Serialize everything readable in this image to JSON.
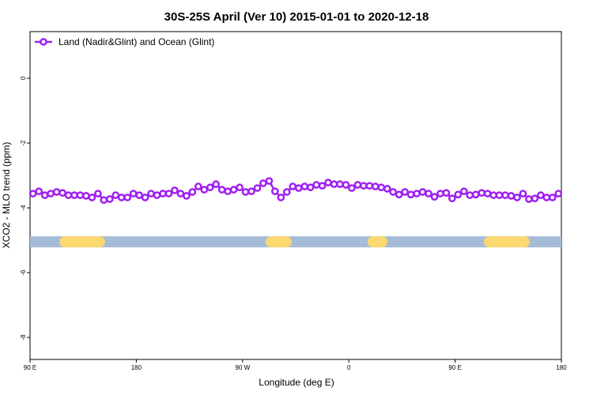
{
  "chart_data": {
    "type": "line",
    "title": "30S-25S April (Ver 10)   2015-01-01 to 2020-12-18",
    "xlabel": "Longitude (deg E)",
    "ylabel": "XCO2 - MLO trend (ppm)",
    "xlim": [
      90,
      540
    ],
    "ylim": [
      -8.68,
      1.44
    ],
    "xticks": [
      {
        "value": 90,
        "label": "90 E"
      },
      180,
      {
        "value": 270,
        "label": "90 W"
      },
      {
        "value": 360,
        "label": "0"
      },
      {
        "value": 450,
        "label": "90 E"
      },
      {
        "value": 540,
        "label": "180"
      }
    ],
    "yticks": [
      0,
      -2,
      -4,
      -6,
      -8
    ],
    "legend": "upper left",
    "x": [
      92.5,
      97.5,
      102.5,
      107.5,
      112.5,
      117.5,
      122.5,
      127.5,
      132.5,
      137.5,
      142.5,
      147.5,
      152.5,
      157.5,
      162.5,
      167.5,
      172.5,
      177.5,
      182.5,
      187.5,
      192.5,
      197.5,
      202.5,
      207.5,
      212.5,
      217.5,
      222.5,
      227.5,
      232.5,
      237.5,
      242.5,
      247.5,
      252.5,
      257.5,
      262.5,
      267.5,
      272.5,
      277.5,
      282.5,
      287.5,
      292.5,
      297.5,
      302.5,
      307.5,
      312.5,
      317.5,
      322.5,
      327.5,
      332.5,
      337.5,
      342.5,
      347.5,
      352.5,
      357.5,
      362.5,
      367.5,
      372.5,
      377.5,
      382.5,
      387.5,
      392.5,
      397.5,
      402.5,
      407.5,
      412.5,
      417.5,
      422.5,
      427.5,
      432.5,
      437.5,
      442.5,
      447.5,
      452.5,
      457.5,
      462.5,
      467.5,
      472.5,
      477.5,
      482.5,
      487.5,
      492.5,
      497.5,
      502.5,
      507.5,
      512.5,
      517.5,
      522.5,
      527.5,
      532.5,
      537.5
    ],
    "series": [
      {
        "name": "Land (Nadir&Glint) and Ocean (Glint)",
        "color": "#a020f0",
        "values": [
          -3.56,
          -3.49,
          -3.61,
          -3.56,
          -3.51,
          -3.54,
          -3.61,
          -3.61,
          -3.61,
          -3.63,
          -3.68,
          -3.56,
          -3.76,
          -3.73,
          -3.61,
          -3.68,
          -3.68,
          -3.56,
          -3.61,
          -3.68,
          -3.56,
          -3.61,
          -3.56,
          -3.56,
          -3.46,
          -3.56,
          -3.63,
          -3.51,
          -3.34,
          -3.44,
          -3.37,
          -3.27,
          -3.44,
          -3.49,
          -3.44,
          -3.37,
          -3.51,
          -3.49,
          -3.39,
          -3.24,
          -3.17,
          -3.49,
          -3.68,
          -3.51,
          -3.34,
          -3.39,
          -3.34,
          -3.37,
          -3.29,
          -3.32,
          -3.22,
          -3.27,
          -3.27,
          -3.29,
          -3.39,
          -3.29,
          -3.32,
          -3.32,
          -3.34,
          -3.37,
          -3.41,
          -3.51,
          -3.59,
          -3.51,
          -3.59,
          -3.56,
          -3.51,
          -3.56,
          -3.66,
          -3.56,
          -3.54,
          -3.71,
          -3.59,
          -3.49,
          -3.61,
          -3.59,
          -3.54,
          -3.56,
          -3.61,
          -3.61,
          -3.61,
          -3.63,
          -3.68,
          -3.56,
          -3.73,
          -3.71,
          -3.61,
          -3.68,
          -3.68,
          -3.56
        ]
      }
    ],
    "band": {
      "y": -5.05,
      "color": "#a5bcd8",
      "segment_color": "#fcd870",
      "segments": [
        [
          114.8,
          153.6
        ],
        [
          289.6,
          311.6
        ],
        [
          375.9,
          392.7
        ],
        [
          474.4,
          513.2
        ]
      ]
    }
  }
}
